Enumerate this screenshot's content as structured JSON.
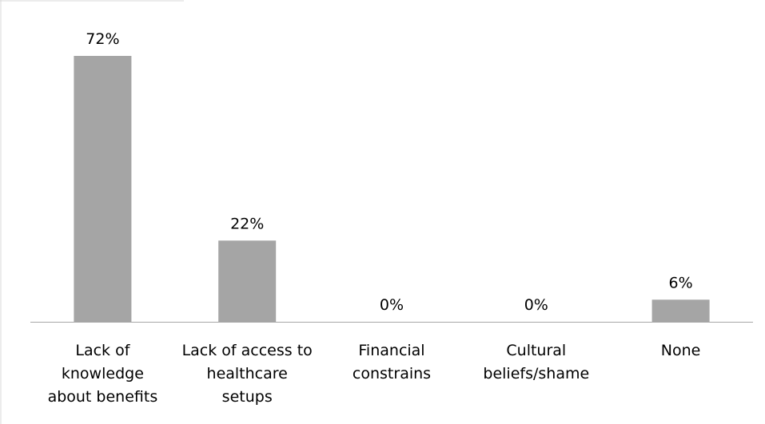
{
  "chart_data": {
    "type": "bar",
    "title": "",
    "xlabel": "",
    "ylabel": "",
    "categories": [
      "Lack of knowledge about benefits",
      "Lack of access to healthcare setups",
      "Financial constrains",
      "Cultural beliefs/shame",
      "None"
    ],
    "category_lines": [
      [
        "Lack of",
        "knowledge",
        "about benefits"
      ],
      [
        "Lack of access to",
        "healthcare",
        "setups"
      ],
      [
        "Financial",
        "constrains"
      ],
      [
        "Cultural",
        "beliefs/shame"
      ],
      [
        "None"
      ]
    ],
    "values": [
      72,
      22,
      0,
      0,
      6
    ],
    "value_labels": [
      "72%",
      "22%",
      "0%",
      "0%",
      "6%"
    ],
    "unit": "%",
    "ylim": [
      0,
      72
    ],
    "grid": false,
    "legend": "none",
    "bar_color": "#a5a5a5"
  }
}
